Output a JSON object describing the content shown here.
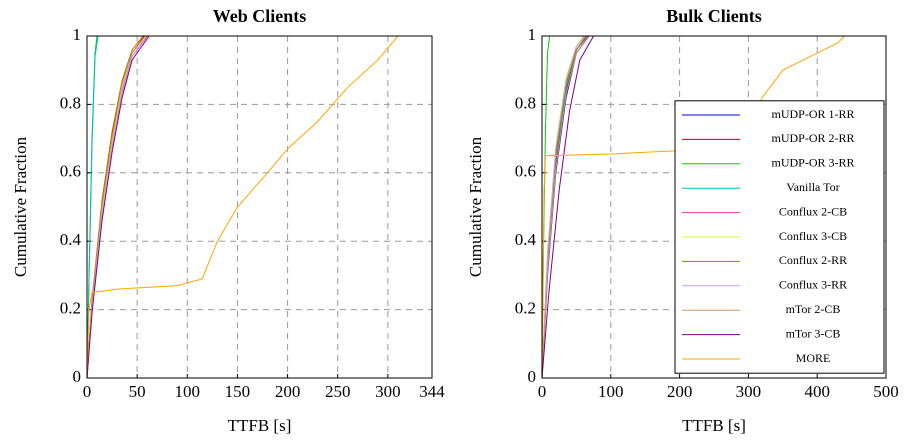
{
  "chart_data": [
    {
      "type": "line",
      "title": "Web Clients",
      "xlabel": "TTFB [s]",
      "ylabel": "Cumulative Fraction",
      "xlim": [
        0,
        344
      ],
      "ylim": [
        0,
        1
      ],
      "xticks": [
        0,
        50,
        100,
        150,
        200,
        250,
        300,
        344
      ],
      "yticks": [
        0,
        0.2,
        0.4,
        0.6,
        0.8,
        1
      ],
      "grid": true,
      "series": [
        {
          "color": "#0000ff",
          "x": [
            0,
            5,
            15,
            25,
            35,
            45,
            58
          ],
          "values": [
            0,
            0.22,
            0.5,
            0.7,
            0.85,
            0.95,
            1
          ]
        },
        {
          "color": "#cc0000",
          "x": [
            0,
            5,
            15,
            25,
            35,
            45,
            57
          ],
          "values": [
            0,
            0.22,
            0.51,
            0.71,
            0.86,
            0.95,
            1
          ]
        },
        {
          "color": "#00cc00",
          "x": [
            0,
            2,
            5,
            8,
            10
          ],
          "values": [
            0,
            0.3,
            0.7,
            0.95,
            1
          ]
        },
        {
          "color": "#00bfbf",
          "x": [
            0,
            2,
            5,
            8,
            11
          ],
          "values": [
            0,
            0.28,
            0.68,
            0.94,
            1
          ]
        },
        {
          "color": "#ff3399",
          "x": [
            0,
            5,
            15,
            25,
            35,
            45,
            60
          ],
          "values": [
            0,
            0.2,
            0.48,
            0.68,
            0.84,
            0.94,
            1
          ]
        },
        {
          "color": "#ccff33",
          "x": [
            0,
            5,
            15,
            25,
            35,
            45,
            59
          ],
          "values": [
            0,
            0.21,
            0.49,
            0.69,
            0.85,
            0.95,
            1
          ]
        },
        {
          "color": "#998000",
          "x": [
            0,
            5,
            15,
            25,
            35,
            45,
            56
          ],
          "values": [
            0,
            0.23,
            0.52,
            0.72,
            0.87,
            0.96,
            1
          ]
        },
        {
          "color": "#cc99ff",
          "x": [
            0,
            5,
            15,
            25,
            35,
            45,
            61
          ],
          "values": [
            0,
            0.2,
            0.47,
            0.67,
            0.83,
            0.94,
            1
          ]
        },
        {
          "color": "#cc9966",
          "x": [
            0,
            5,
            15,
            25,
            35,
            45,
            58
          ],
          "values": [
            0,
            0.22,
            0.5,
            0.7,
            0.86,
            0.95,
            1
          ]
        },
        {
          "color": "#800080",
          "x": [
            0,
            5,
            15,
            25,
            35,
            45,
            62
          ],
          "values": [
            0,
            0.19,
            0.46,
            0.66,
            0.82,
            0.93,
            1
          ]
        },
        {
          "color": "#ffa500",
          "x": [
            0,
            2,
            5,
            30,
            90,
            115,
            130,
            150,
            180,
            200,
            230,
            260,
            290,
            310
          ],
          "values": [
            0,
            0.2,
            0.25,
            0.26,
            0.27,
            0.29,
            0.4,
            0.5,
            0.6,
            0.67,
            0.75,
            0.85,
            0.93,
            1
          ]
        }
      ]
    },
    {
      "type": "line",
      "title": "Bulk Clients",
      "xlabel": "TTFB [s]",
      "ylabel": "Cumulative Fraction",
      "xlim": [
        0,
        500
      ],
      "ylim": [
        0,
        1
      ],
      "xticks": [
        0,
        100,
        200,
        300,
        400,
        500
      ],
      "yticks": [
        0,
        0.2,
        0.4,
        0.6,
        0.8,
        1
      ],
      "grid": true,
      "legend": "east",
      "series": [
        {
          "name": "mUDP-OR 1-RR",
          "color": "#0000ff",
          "x": [
            0,
            8,
            20,
            35,
            50,
            68
          ],
          "values": [
            0,
            0.3,
            0.6,
            0.82,
            0.95,
            1
          ]
        },
        {
          "name": "mUDP-OR 2-RR",
          "color": "#cc0000",
          "x": [
            0,
            8,
            20,
            35,
            50,
            66
          ],
          "values": [
            0,
            0.32,
            0.62,
            0.84,
            0.96,
            1
          ]
        },
        {
          "name": "mUDP-OR 3-RR",
          "color": "#00cc00",
          "x": [
            0,
            2,
            5,
            8,
            11
          ],
          "values": [
            0,
            0.35,
            0.72,
            0.95,
            1
          ]
        },
        {
          "name": "Vanilla Tor",
          "color": "#00bfbf",
          "x": [
            0,
            8,
            20,
            35,
            50,
            64
          ],
          "values": [
            0,
            0.33,
            0.64,
            0.85,
            0.96,
            1
          ]
        },
        {
          "name": "Conflux 2-CB",
          "color": "#ff3399",
          "x": [
            0,
            8,
            20,
            35,
            50,
            62
          ],
          "values": [
            0,
            0.35,
            0.66,
            0.87,
            0.97,
            1
          ]
        },
        {
          "name": "Conflux 3-CB",
          "color": "#ccff33",
          "x": [
            0,
            8,
            20,
            35,
            50,
            60
          ],
          "values": [
            0,
            0.37,
            0.68,
            0.88,
            0.97,
            1
          ]
        },
        {
          "name": "Conflux 2-RR",
          "color": "#998000",
          "x": [
            0,
            8,
            20,
            35,
            50,
            65
          ],
          "values": [
            0,
            0.34,
            0.65,
            0.86,
            0.96,
            1
          ]
        },
        {
          "name": "Conflux 3-RR",
          "color": "#cc99ff",
          "x": [
            0,
            8,
            20,
            35,
            50,
            63
          ],
          "values": [
            0,
            0.36,
            0.67,
            0.87,
            0.97,
            1
          ]
        },
        {
          "name": "mTor 2-CB",
          "color": "#cc9966",
          "x": [
            0,
            8,
            20,
            35,
            50,
            67
          ],
          "values": [
            0,
            0.31,
            0.61,
            0.83,
            0.95,
            1
          ]
        },
        {
          "name": "mTor 3-CB",
          "color": "#800080",
          "x": [
            0,
            10,
            25,
            40,
            55,
            75
          ],
          "values": [
            0,
            0.25,
            0.55,
            0.78,
            0.93,
            1
          ]
        },
        {
          "name": "MORE",
          "color": "#ffa500",
          "x": [
            0,
            3,
            5,
            100,
            200,
            250,
            300,
            320,
            350,
            400,
            430,
            440
          ],
          "values": [
            0,
            0.55,
            0.65,
            0.655,
            0.665,
            0.67,
            0.7,
            0.82,
            0.9,
            0.95,
            0.98,
            1
          ]
        }
      ]
    }
  ]
}
